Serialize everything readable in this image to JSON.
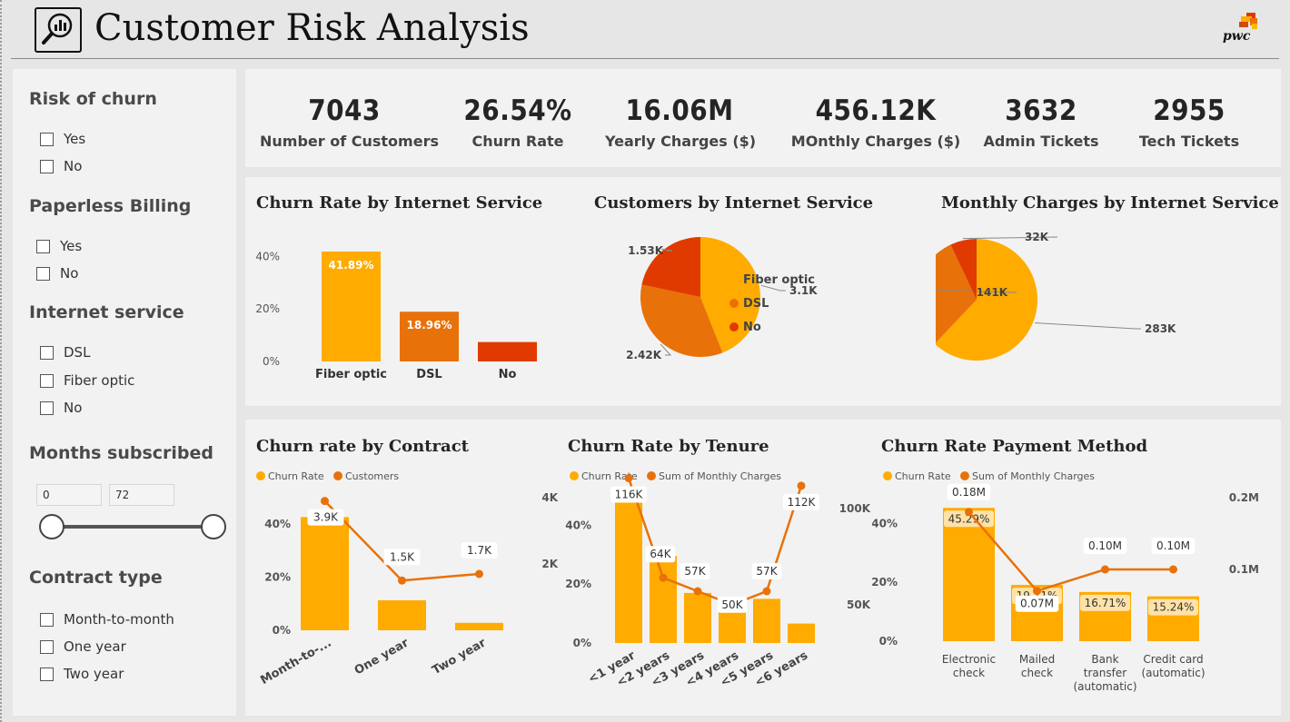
{
  "header": {
    "title": "Customer Risk Analysis",
    "brand": "pwc"
  },
  "filters": {
    "risk_of_churn": {
      "title": "Risk of churn",
      "options": [
        "Yes",
        "No"
      ]
    },
    "paperless_billing": {
      "title": "Paperless Billing",
      "options": [
        "Yes",
        "No"
      ]
    },
    "internet_service": {
      "title": "Internet service",
      "options": [
        "DSL",
        "Fiber optic",
        "No"
      ]
    },
    "months_subscribed": {
      "title": "Months subscribed",
      "min": "0",
      "max": "72"
    },
    "contract_type": {
      "title": "Contract type",
      "options": [
        "Month-to-month",
        "One year",
        "Two year"
      ]
    }
  },
  "kpis": [
    {
      "value": "7043",
      "label": "Number of Customers"
    },
    {
      "value": "26.54%",
      "label": "Churn Rate"
    },
    {
      "value": "16.06M",
      "label": "Yearly Charges ($)"
    },
    {
      "value": "456.12K",
      "label": "MOnthly Charges ($)"
    },
    {
      "value": "3632",
      "label": "Admin Tickets"
    },
    {
      "value": "2955",
      "label": "Tech Tickets"
    }
  ],
  "colors": {
    "primary": "#FFAB00",
    "secondary": "#E8710A",
    "tertiary": "#E03A00",
    "light": "#FFE2A8"
  },
  "chart_data": [
    {
      "type": "bar",
      "title": "Churn Rate by Internet Service",
      "categories": [
        "Fiber optic",
        "DSL",
        "No"
      ],
      "values": [
        41.89,
        18.96,
        7.4
      ],
      "data_labels": [
        "41.89%",
        "18.96%",
        ""
      ],
      "yticks": [
        "0%",
        "20%",
        "40%"
      ],
      "ylim": [
        0,
        45
      ]
    },
    {
      "type": "pie",
      "title": "Customers by Internet Service",
      "labels": [
        "Fiber optic",
        "DSL",
        "No"
      ],
      "values": [
        3100,
        2420,
        1530
      ],
      "data_labels": [
        "3.1K",
        "2.42K",
        "1.53K"
      ]
    },
    {
      "type": "pie",
      "title": "Monthly Charges by Internet Service",
      "labels": [
        "Fiber optic",
        "DSL",
        "No"
      ],
      "values": [
        283,
        141,
        32
      ],
      "data_labels": [
        "283K",
        "141K",
        "32K"
      ]
    },
    {
      "type": "bar",
      "title": "Churn rate by Contract",
      "legend": [
        "Churn Rate",
        "Customers"
      ],
      "categories": [
        "Month-to-...",
        "One year",
        "Two year"
      ],
      "series": [
        {
          "name": "Churn Rate",
          "values": [
            42.7,
            11.3,
            2.8
          ]
        },
        {
          "name": "Customers",
          "values": [
            3900,
            1500,
            1700
          ],
          "data_labels": [
            "3.9K",
            "1.5K",
            "1.7K"
          ]
        }
      ],
      "yticks": [
        "0%",
        "20%",
        "40%"
      ],
      "y2ticks": [
        "2K",
        "4K"
      ],
      "ylim": [
        0,
        50
      ],
      "y2lim": [
        0,
        4000
      ]
    },
    {
      "type": "bar",
      "title": "Churn Rate by Tenure",
      "legend": [
        "Churn Rate",
        "Sum of Monthly Charges"
      ],
      "categories": [
        "<1 year",
        "<2 years",
        "<3 years",
        "<4 years",
        "<5 years",
        "<6 years"
      ],
      "series": [
        {
          "name": "Churn Rate",
          "values": [
            48.3,
            29.6,
            17.0,
            11.9,
            15.0,
            6.6
          ]
        },
        {
          "name": "Sum of Monthly Charges",
          "values": [
            116000,
            64000,
            57000,
            50000,
            57000,
            112000
          ],
          "data_labels": [
            "116K",
            "64K",
            "57K",
            "50K",
            "57K",
            "112K"
          ]
        }
      ],
      "yticks": [
        "0%",
        "20%",
        "40%"
      ],
      "y2ticks": [
        "50K",
        "100K"
      ],
      "ylim": [
        0,
        50
      ],
      "y2lim": [
        30000,
        120000
      ]
    },
    {
      "type": "bar",
      "title": "Churn Rate Payment Method",
      "legend": [
        "Churn Rate",
        "Sum of Monthly Charges"
      ],
      "categories": [
        "Electronic check",
        "Mailed check",
        "Bank transfer (automatic)",
        "Credit card (automatic)"
      ],
      "series": [
        {
          "name": "Churn Rate",
          "values": [
            45.29,
            19.11,
            16.71,
            15.24
          ],
          "data_labels": [
            "45.29%",
            "19.11%",
            "16.71%",
            "15.24%"
          ]
        },
        {
          "name": "Sum of Monthly Charges",
          "values": [
            0.18,
            0.07,
            0.1,
            0.1
          ],
          "data_labels": [
            "0.18M",
            "0.07M",
            "0.10M",
            "0.10M"
          ]
        }
      ],
      "yticks": [
        "0%",
        "20%",
        "40%"
      ],
      "y2ticks": [
        "0.1M",
        "0.2M"
      ],
      "ylim": [
        0,
        50
      ],
      "y2lim": [
        0,
        0.2
      ]
    }
  ]
}
